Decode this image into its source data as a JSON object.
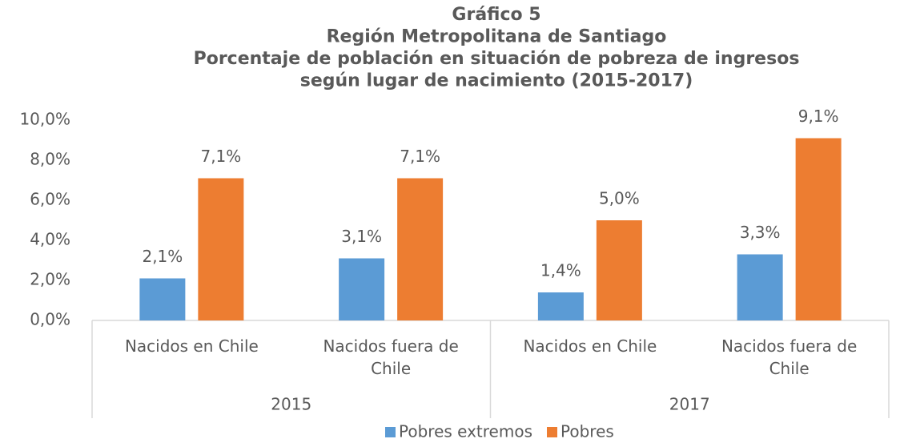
{
  "chart_data": {
    "type": "bar",
    "title": [
      "Gráfico 5",
      "Región Metropolitana de Santiago",
      "Porcentaje de población en situación de pobreza de ingresos",
      "según lugar de nacimiento (2015-2017)"
    ],
    "categories": [
      "Nacidos en Chile",
      "Nacidos fuera de Chile",
      "Nacidos en Chile",
      "Nacidos fuera de Chile"
    ],
    "groups": [
      "2015",
      "2017"
    ],
    "series": [
      {
        "name": "Pobres extremos",
        "color": "#5b9bd5",
        "values": [
          2.1,
          3.1,
          1.4,
          3.3
        ],
        "value_labels": [
          "2,1%",
          "3,1%",
          "1,4%",
          "3,3%"
        ]
      },
      {
        "name": "Pobres",
        "color": "#ed7d31",
        "values": [
          7.1,
          7.1,
          5.0,
          9.1
        ],
        "value_labels": [
          "7,1%",
          "7,1%",
          "5,0%",
          "9,1%"
        ]
      }
    ],
    "ylim": [
      0,
      10
    ],
    "yticks": [
      {
        "value": 0,
        "label": "0,0%"
      },
      {
        "value": 2,
        "label": "2,0%"
      },
      {
        "value": 4,
        "label": "4,0%"
      },
      {
        "value": 6,
        "label": "6,0%"
      },
      {
        "value": 8,
        "label": "8,0%"
      },
      {
        "value": 10,
        "label": "10,0%"
      }
    ],
    "grid": false,
    "legend": "bottom"
  }
}
